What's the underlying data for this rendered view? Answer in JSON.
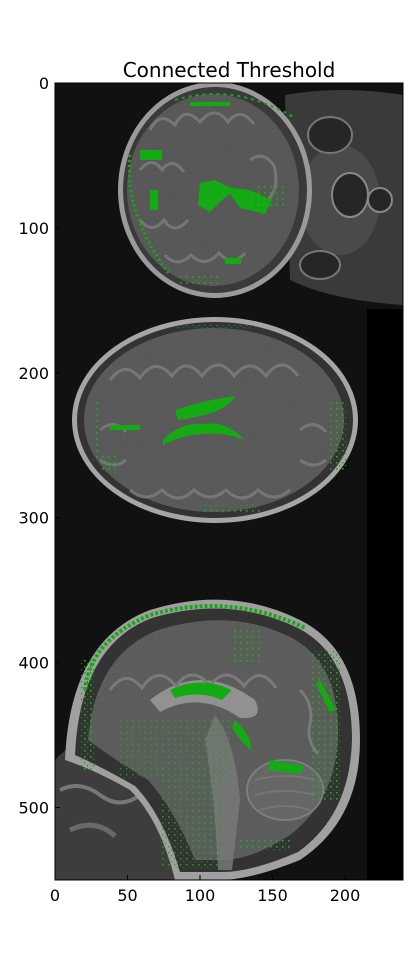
{
  "figure": {
    "title": "Connected Threshold",
    "colors": {
      "background": "#ffffff",
      "image_background": "#111111",
      "tissue_dark": "#2b2b2b",
      "tissue_mid": "#4c4c4c",
      "tissue_light": "#6a6a6a",
      "skull_rim": "#8c8c8c",
      "segmentation": "#14aa14",
      "segmentation_dark": "#0a7a0a",
      "black_strip": "#000000"
    }
  },
  "chart_data": {
    "type": "image",
    "title": "Connected Threshold",
    "xlim": [
      0,
      240
    ],
    "ylim": [
      550,
      0
    ],
    "xticks": [
      0,
      50,
      100,
      150,
      200
    ],
    "yticks": [
      0,
      100,
      200,
      300,
      400,
      500
    ],
    "xtick_labels": [
      "0",
      "50",
      "100",
      "150",
      "200"
    ],
    "ytick_labels": [
      "0",
      "100",
      "200",
      "300",
      "400",
      "500"
    ],
    "panels": [
      "axial slice (top)",
      "axial slice (middle)",
      "sagittal slice (bottom)"
    ],
    "overlay": "green segmentation mask (connected threshold region)"
  }
}
